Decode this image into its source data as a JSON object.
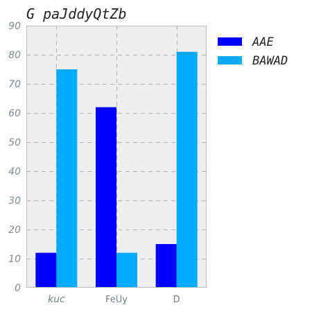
{
  "chart_data": {
    "type": "bar",
    "title": "G paJddyQtZb",
    "xlabel": "",
    "ylabel": "",
    "categories": [
      "kuc",
      "FeUy",
      "D"
    ],
    "series": [
      {
        "name": "AAE",
        "values": [
          12,
          62,
          15
        ],
        "color": "#0000ff"
      },
      {
        "name": "BAWAD",
        "values": [
          75,
          12,
          81
        ],
        "color": "#00aaff"
      }
    ],
    "ylim": [
      0,
      90
    ],
    "yticks": [
      0,
      10,
      20,
      30,
      40,
      50,
      60,
      70,
      80,
      90
    ],
    "grid": true,
    "legend_position": "outside-right-top",
    "plot_background": "#eeeeee",
    "grid_color": "#b0b0b0",
    "frame_color": "#bcbcbc"
  }
}
